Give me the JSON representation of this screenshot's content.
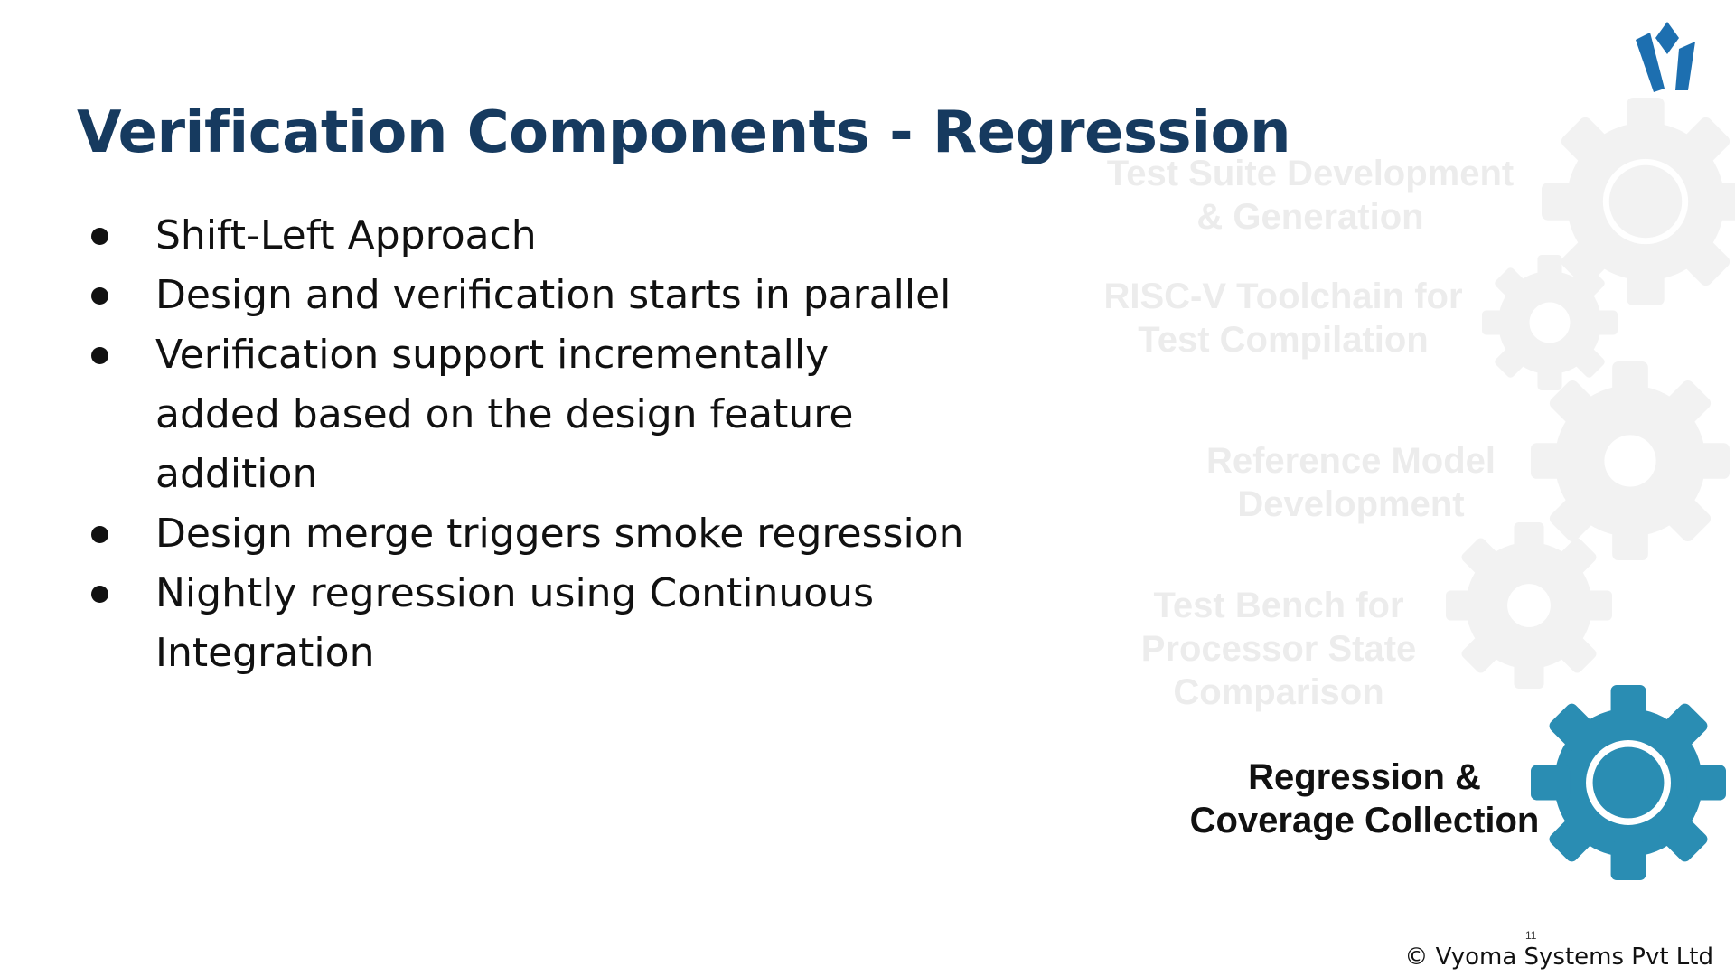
{
  "slide": {
    "title": "Verification Components - Regression",
    "bullets": [
      "Shift-Left Approach",
      "Design and verification starts in parallel",
      "Verification support incrementally added based on the design feature addition",
      "Design merge triggers smoke regression",
      "Nightly regression using Continuous Integration"
    ]
  },
  "process": {
    "steps": [
      {
        "label_line1": "Test Suite Development",
        "label_line2": "& Generation",
        "active": false
      },
      {
        "label_line1": "RISC-V Toolchain for",
        "label_line2": "Test Compilation",
        "active": false
      },
      {
        "label_line1": "Reference Model",
        "label_line2": "Development",
        "active": false
      },
      {
        "label_line1": "Test Bench for",
        "label_line2": "Processor State",
        "label_line3": "Comparison",
        "active": false
      },
      {
        "label_line1": "Regression &",
        "label_line2": "Coverage Collection",
        "active": true
      }
    ]
  },
  "footer": {
    "page_number": "11",
    "copyright": "© Vyoma Systems Pvt Ltd"
  },
  "colors": {
    "title": "#163a5f",
    "active_gear": "#2a8db3",
    "faded_gear": "#f2f2f2",
    "faded_text": "#ececec",
    "logo_blue": "#1d6fb0"
  },
  "icons": {
    "logo": "vyoma-logo-icon",
    "gear": "gear-icon"
  }
}
